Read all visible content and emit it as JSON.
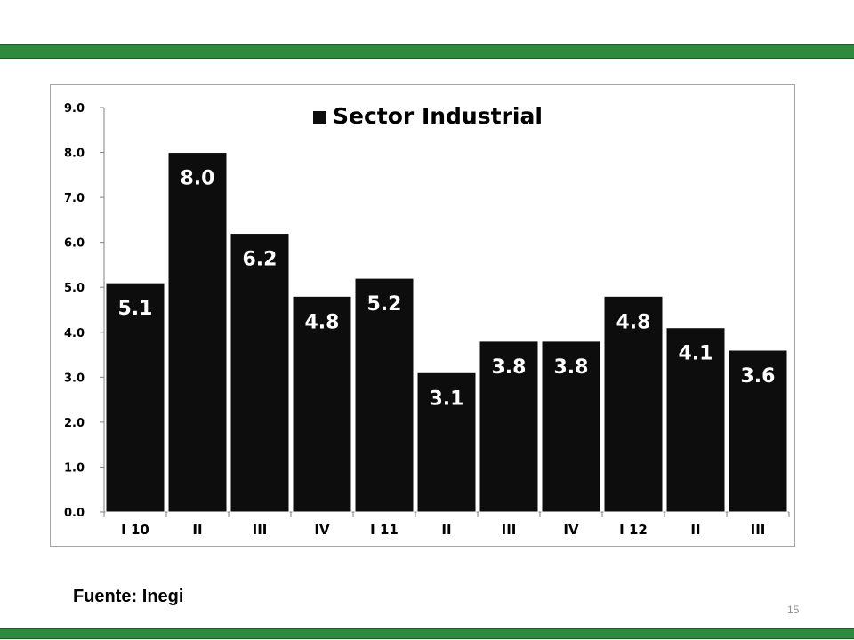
{
  "colors": {
    "band": "#2e8b3e",
    "bar": "#0d0d0d",
    "bar_label": "#ffffff",
    "axis": "#808080"
  },
  "chart_data": {
    "type": "bar",
    "title": "",
    "legend": {
      "position": "top-center",
      "entries": [
        "Sector Industrial"
      ]
    },
    "categories": [
      "I 10",
      "II",
      "III",
      "IV",
      "I 11",
      "II",
      "III",
      "IV",
      "I 12",
      "II",
      "III"
    ],
    "series": [
      {
        "name": "Sector Industrial",
        "values": [
          5.1,
          8.0,
          6.2,
          4.8,
          5.2,
          3.1,
          3.8,
          3.8,
          4.8,
          4.1,
          3.6
        ]
      }
    ],
    "data_labels": [
      "5.1",
      "8.0",
      "6.2",
      "4.8",
      "5.2",
      "3.1",
      "3.8",
      "3.8",
      "4.8",
      "4.1",
      "3.6"
    ],
    "ylim": [
      0,
      9
    ],
    "yticks": [
      "0.0",
      "1.0",
      "2.0",
      "3.0",
      "4.0",
      "5.0",
      "6.0",
      "7.0",
      "8.0",
      "9.0"
    ],
    "xlabel": "",
    "ylabel": "",
    "grid": false
  },
  "footer": {
    "source": "Fuente: Inegi",
    "page_number": "15"
  }
}
